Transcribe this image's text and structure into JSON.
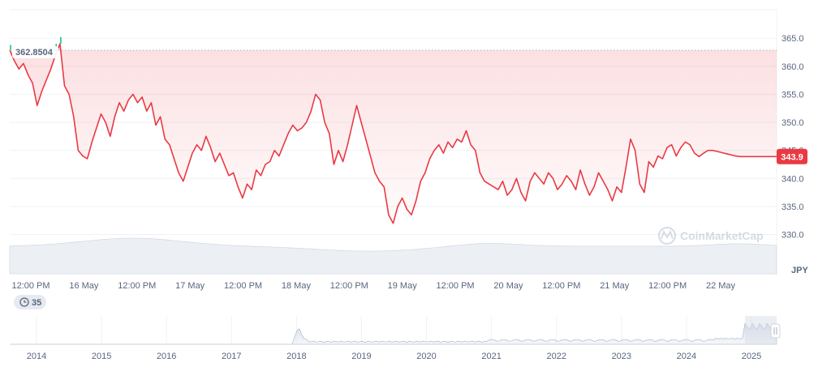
{
  "chart_data": {
    "type": "line",
    "title": "",
    "xlabel": "",
    "ylabel": "JPY",
    "ylim": [
      327,
      368
    ],
    "y_ticks": [
      "365.0",
      "360.0",
      "355.0",
      "350.0",
      "345.0",
      "340.0",
      "335.0",
      "330.0"
    ],
    "x_tick_labels": [
      "12:00 PM",
      "16 May",
      "12:00 PM",
      "17 May",
      "12:00 PM",
      "18 May",
      "12:00 PM",
      "19 May",
      "12:00 PM",
      "20 May",
      "12:00 PM",
      "21 May",
      "12:00 PM",
      "22 May"
    ],
    "open_price_label": "362.8504",
    "current_price_label": "343.9",
    "watermark": "CoinMarketCap",
    "range_badge": "35",
    "grid": true,
    "colors": {
      "line_down": "#ea3943",
      "line_up": "#16c784",
      "area": "#ea3943",
      "badge": "#ea3943"
    },
    "series": [
      {
        "x_hours": [
          0,
          1,
          2,
          3,
          4,
          5,
          6,
          7,
          8,
          9,
          10,
          11,
          12,
          13,
          14,
          15,
          16,
          17,
          18,
          19,
          20,
          21,
          22,
          23,
          24,
          25,
          26,
          27,
          28,
          29,
          30,
          31,
          32,
          33,
          34,
          35,
          36,
          37,
          38,
          39,
          40,
          41,
          42,
          43,
          44,
          45,
          46,
          47,
          48,
          49,
          50,
          51,
          52,
          53,
          54,
          55,
          56,
          57,
          58,
          59,
          60,
          61,
          62,
          63,
          64,
          65,
          66,
          67,
          68,
          69,
          70,
          71,
          72,
          73,
          74,
          75,
          76,
          77,
          78,
          79,
          80,
          81,
          82,
          83,
          84,
          85,
          86,
          87,
          88,
          89,
          90,
          91,
          92,
          93,
          94,
          95,
          96,
          97,
          98,
          99,
          100,
          101,
          102,
          103,
          104,
          105,
          106,
          107,
          108,
          109,
          110,
          111,
          112,
          113,
          114,
          115,
          116,
          117,
          118,
          119,
          120,
          121,
          122,
          123,
          124,
          125,
          126,
          127,
          128,
          129,
          130,
          131,
          132,
          133,
          134,
          135,
          136,
          137,
          138,
          139,
          140,
          141,
          142,
          143,
          144,
          145,
          146,
          147,
          148,
          149,
          150,
          151,
          152,
          153,
          154,
          155,
          156,
          157,
          158,
          159,
          160,
          161,
          162,
          163,
          164,
          165,
          166,
          167,
          168
        ],
        "values": [
          362.9,
          361.0,
          359.5,
          360.5,
          358.5,
          357.0,
          353.0,
          355.5,
          357.5,
          359.5,
          362.0,
          364.0,
          356.5,
          355.0,
          351.0,
          345.0,
          344.0,
          343.5,
          346.5,
          349.0,
          351.5,
          350.0,
          347.5,
          351.0,
          353.5,
          352.0,
          354.0,
          355.0,
          353.5,
          354.5,
          352.0,
          353.5,
          349.5,
          351.0,
          347.0,
          346.0,
          343.5,
          341.0,
          339.5,
          342.0,
          344.5,
          346.0,
          345.0,
          347.5,
          345.5,
          343.0,
          344.5,
          342.5,
          340.5,
          341.0,
          338.5,
          336.5,
          339.0,
          338.0,
          341.5,
          340.5,
          342.5,
          343.0,
          345.0,
          344.0,
          346.0,
          348.0,
          349.5,
          348.5,
          349.0,
          350.0,
          352.0,
          355.0,
          354.0,
          350.0,
          348.0,
          342.5,
          345.0,
          343.0,
          346.0,
          349.5,
          353.0,
          350.0,
          347.0,
          344.0,
          341.0,
          339.5,
          338.5,
          333.5,
          332.0,
          335.0,
          336.5,
          334.5,
          333.5,
          336.0,
          339.5,
          341.0,
          343.5,
          345.0,
          346.0,
          344.5,
          346.5,
          345.5,
          347.0,
          346.5,
          348.5,
          346.0,
          345.0,
          341.0,
          339.5,
          339.0,
          338.5,
          338.0,
          339.5,
          337.0,
          338.0,
          340.0,
          337.5,
          336.0,
          339.5,
          341.0,
          340.0,
          339.0,
          341.0,
          340.0,
          338.0,
          339.0,
          340.5,
          339.5,
          338.0,
          341.5,
          339.0,
          337.0,
          338.5,
          341.0,
          339.5,
          338.0,
          336.0,
          338.5,
          337.5,
          342.0,
          347.0,
          345.0,
          339.0,
          337.5,
          343.0,
          342.0,
          344.0,
          343.5,
          345.5,
          346.0,
          344.0,
          345.5,
          346.5,
          346.0,
          344.5,
          343.9,
          344.5,
          345.0,
          345.0,
          344.8,
          344.6,
          344.4,
          344.2,
          344.0,
          343.9,
          343.9,
          343.9,
          343.9,
          343.9,
          343.9,
          343.9,
          343.9,
          343.9
        ]
      }
    ]
  },
  "navigator": {
    "years": [
      "2014",
      "2015",
      "2016",
      "2017",
      "2018",
      "2019",
      "2020",
      "2021",
      "2022",
      "2023",
      "2024",
      "2025"
    ]
  }
}
